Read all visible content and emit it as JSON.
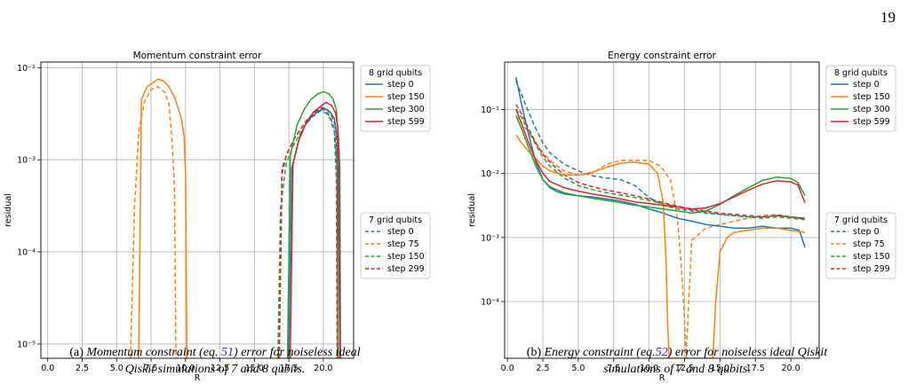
{
  "page_number": "19",
  "captions": [
    {
      "label": "(a)",
      "before": "Momentum constraint (eq.",
      "ref": "51",
      "after_line1": ") error for noiseless ideal",
      "line2": "Qiskit simulations of 7 and 8 qubits."
    },
    {
      "label": "(b)",
      "before": "Energy constraint (eq.",
      "ref": "52",
      "after_line1": ") error for noiseless ideal Qiskit",
      "line2": "simulations of 7 and 8 qubits."
    }
  ],
  "colors": {
    "step_a": "#1f77b4",
    "step_b": "#ff7f0e",
    "step_c": "#2ca02c",
    "step_d": "#d62728",
    "grid": "#b0b0b0"
  },
  "chart_data": [
    {
      "type": "line",
      "title": "Momentum constraint error",
      "xlabel": "R",
      "ylabel": "residual",
      "y_scale": "log",
      "xlim": [
        -0.5,
        22.2
      ],
      "ylim": [
        7e-06,
        0.0115
      ],
      "x_ticks": [
        0,
        2.5,
        5,
        7.5,
        10,
        12.5,
        15,
        17.5,
        20
      ],
      "x_tick_labels": [
        "0.0",
        "2.5",
        "5.0",
        "7.5",
        "10.0",
        "12.5",
        "15.0",
        "17.5",
        "20.0"
      ],
      "y_ticks": [
        1e-05,
        0.0001,
        0.001,
        0.01
      ],
      "y_tick_labels": [
        "10⁻⁵",
        "10⁻⁴",
        "10⁻³",
        "10⁻²"
      ],
      "grid": true,
      "legends": [
        {
          "title": "8 grid qubits",
          "placement": "upper-right-outside",
          "entries": [
            "step 0",
            "step 150",
            "step 300",
            "step 599"
          ],
          "styles": [
            "solid",
            "solid",
            "solid",
            "solid"
          ]
        },
        {
          "title": "7 grid qubits",
          "placement": "lower-right-outside",
          "entries": [
            "step 0",
            "step 75",
            "step 150",
            "step 299"
          ],
          "styles": [
            "dashed",
            "dashed",
            "dashed",
            "dashed"
          ]
        }
      ],
      "series": [
        {
          "legend": 0,
          "entry": 1,
          "color_key": "step_b",
          "style": "solid",
          "x": [
            6.6,
            6.8,
            7.2,
            7.6,
            8.0,
            8.4,
            8.8,
            9.2,
            9.5,
            9.7,
            9.9,
            10.0,
            10.1
          ],
          "y": [
            7e-06,
            0.0045,
            0.0062,
            0.0068,
            0.0075,
            0.0072,
            0.0062,
            0.0048,
            0.0035,
            0.0028,
            0.0018,
            0.0007,
            7e-06
          ]
        },
        {
          "legend": 1,
          "entry": 1,
          "color_key": "step_b",
          "style": "dashed",
          "x": [
            6.0,
            6.3,
            6.6,
            7.0,
            7.5,
            8.0,
            8.5,
            8.8,
            9.0,
            9.2,
            9.3
          ],
          "y": [
            7e-06,
            0.0003,
            0.002,
            0.0042,
            0.0058,
            0.0062,
            0.0054,
            0.004,
            0.0018,
            0.0005,
            7e-06
          ]
        },
        {
          "legend": 1,
          "entry": 0,
          "color_key": "step_a",
          "style": "dashed",
          "x": [
            16.8,
            17.0,
            17.3,
            17.8,
            18.3,
            18.8,
            19.3,
            19.8,
            20.2,
            20.5,
            20.8,
            21.0,
            21.05
          ],
          "y": [
            7e-06,
            0.0007,
            0.0011,
            0.0016,
            0.0021,
            0.0027,
            0.0032,
            0.0036,
            0.0034,
            0.0029,
            0.0022,
            0.0008,
            7e-06
          ]
        },
        {
          "legend": 1,
          "entry": 2,
          "color_key": "step_c",
          "style": "dashed",
          "x": [
            16.7,
            16.9,
            17.3,
            17.8,
            18.3,
            18.8,
            19.3,
            19.8,
            20.2,
            20.5,
            20.8,
            20.95,
            21.0
          ],
          "y": [
            7e-06,
            0.0003,
            0.0009,
            0.0014,
            0.0019,
            0.0025,
            0.003,
            0.0034,
            0.0032,
            0.0028,
            0.002,
            0.0006,
            7e-06
          ]
        },
        {
          "legend": 1,
          "entry": 3,
          "color_key": "step_d",
          "style": "dashed",
          "x": [
            16.8,
            17.0,
            17.4,
            17.9,
            18.4,
            18.9,
            19.4,
            19.9,
            20.3,
            20.6,
            20.9,
            21.0,
            21.05
          ],
          "y": [
            7e-06,
            0.0008,
            0.0012,
            0.0017,
            0.0022,
            0.0028,
            0.0033,
            0.0037,
            0.0035,
            0.003,
            0.0023,
            0.0009,
            7e-06
          ]
        },
        {
          "legend": 0,
          "entry": 0,
          "color_key": "step_a",
          "style": "solid",
          "x": [
            17.5,
            17.7,
            18.2,
            18.7,
            19.2,
            19.7,
            20.1,
            20.5,
            20.8,
            21.0,
            21.1,
            21.2
          ],
          "y": [
            7e-06,
            0.0008,
            0.0016,
            0.0024,
            0.003,
            0.0034,
            0.0036,
            0.0033,
            0.0028,
            0.0018,
            0.0004,
            7e-06
          ]
        },
        {
          "legend": 0,
          "entry": 2,
          "color_key": "step_c",
          "style": "solid",
          "x": [
            17.4,
            17.6,
            18.1,
            18.6,
            19.1,
            19.6,
            20.0,
            20.4,
            20.7,
            20.95,
            21.1,
            21.2,
            21.25
          ],
          "y": [
            7e-06,
            0.0011,
            0.0024,
            0.0035,
            0.0045,
            0.0052,
            0.0055,
            0.0052,
            0.0046,
            0.0035,
            0.0018,
            0.0008,
            7e-06
          ]
        },
        {
          "legend": 0,
          "entry": 3,
          "color_key": "step_d",
          "style": "solid",
          "x": [
            17.6,
            17.8,
            18.3,
            18.8,
            19.3,
            19.8,
            20.2,
            20.6,
            20.9,
            21.05,
            21.15,
            21.2
          ],
          "y": [
            7e-06,
            0.0009,
            0.0018,
            0.0026,
            0.0033,
            0.0038,
            0.0042,
            0.0039,
            0.0032,
            0.0022,
            0.0009,
            7e-06
          ]
        }
      ]
    },
    {
      "type": "line",
      "title": "Energy constraint error",
      "xlabel": "R",
      "ylabel": "residual",
      "y_scale": "log",
      "xlim": [
        -0.2,
        22.0
      ],
      "ylim": [
        1.3e-05,
        0.55
      ],
      "x_ticks": [
        0,
        2.5,
        5,
        7.5,
        10,
        12.5,
        15,
        17.5,
        20
      ],
      "x_tick_labels": [
        "0.0",
        "2.5",
        "5.0",
        "7.5",
        "10.0",
        "12.5",
        "15.0",
        "17.5",
        "20.0"
      ],
      "y_ticks": [
        0.0001,
        0.001,
        0.01,
        0.1
      ],
      "y_tick_labels": [
        "10⁻⁴",
        "10⁻³",
        "10⁻²",
        "10⁻¹"
      ],
      "grid": true,
      "legends": [
        {
          "title": "8 grid qubits",
          "placement": "upper-right-outside",
          "entries": [
            "step 0",
            "step 150",
            "step 300",
            "step 599"
          ],
          "styles": [
            "solid",
            "solid",
            "solid",
            "solid"
          ]
        },
        {
          "title": "7 grid qubits",
          "placement": "lower-right-outside",
          "entries": [
            "step 0",
            "step 75",
            "step 150",
            "step 299"
          ],
          "styles": [
            "dashed",
            "dashed",
            "dashed",
            "dashed"
          ]
        }
      ],
      "series": [
        {
          "legend": 1,
          "entry": 0,
          "color_key": "step_a",
          "style": "dashed",
          "x": [
            0.6,
            1.0,
            1.5,
            2.0,
            2.5,
            3.0,
            4.0,
            5.0,
            6.0,
            7.0,
            8.0,
            9.0,
            10.0,
            11.0,
            12.0,
            13.0,
            14.0,
            15.0,
            16.0,
            17.0,
            18.0,
            19.0,
            20.0,
            21.0
          ],
          "y": [
            0.28,
            0.17,
            0.09,
            0.05,
            0.03,
            0.021,
            0.014,
            0.011,
            0.0092,
            0.0085,
            0.008,
            0.0065,
            0.0042,
            0.0032,
            0.0028,
            0.0026,
            0.0024,
            0.0023,
            0.0022,
            0.0021,
            0.0021,
            0.0022,
            0.0021,
            0.002
          ]
        },
        {
          "legend": 1,
          "entry": 1,
          "color_key": "step_b",
          "style": "dashed",
          "x": [
            0.6,
            1.0,
            1.5,
            2.0,
            2.5,
            3.0,
            4.0,
            5.0,
            6.0,
            7.0,
            8.0,
            9.0,
            10.0,
            10.8,
            11.5,
            12.0,
            12.3,
            12.5,
            12.6,
            13.0,
            14.0,
            15.0,
            16.0,
            17.0,
            18.0,
            19.0,
            20.0,
            21.0
          ],
          "y": [
            0.08,
            0.06,
            0.045,
            0.03,
            0.021,
            0.016,
            0.011,
            0.0095,
            0.01,
            0.014,
            0.016,
            0.016,
            0.016,
            0.013,
            0.008,
            0.002,
            0.0003,
            5e-05,
            1.3e-05,
            0.0009,
            0.0014,
            0.0016,
            0.0018,
            0.002,
            0.0022,
            0.0023,
            0.0021,
            0.0019
          ]
        },
        {
          "legend": 1,
          "entry": 2,
          "color_key": "step_c",
          "style": "dashed",
          "x": [
            0.6,
            1.0,
            1.5,
            2.0,
            2.5,
            3.0,
            4.0,
            5.0,
            6.0,
            7.0,
            8.0,
            9.0,
            10.0,
            11.0,
            12.0,
            13.0,
            14.0,
            15.0,
            16.0,
            17.0,
            18.0,
            19.0,
            20.0,
            21.0
          ],
          "y": [
            0.1,
            0.075,
            0.045,
            0.028,
            0.018,
            0.013,
            0.0085,
            0.0065,
            0.0056,
            0.005,
            0.0046,
            0.0042,
            0.0038,
            0.0034,
            0.003,
            0.0027,
            0.0025,
            0.0023,
            0.0022,
            0.0021,
            0.002,
            0.0021,
            0.002,
            0.0019
          ]
        },
        {
          "legend": 1,
          "entry": 3,
          "color_key": "step_d",
          "style": "dashed",
          "x": [
            0.6,
            1.0,
            1.5,
            2.0,
            2.5,
            3.0,
            4.0,
            5.0,
            6.0,
            7.0,
            8.0,
            9.0,
            10.0,
            11.0,
            12.0,
            13.0,
            14.0,
            15.0,
            16.0,
            17.0,
            18.0,
            19.0,
            20.0,
            21.0
          ],
          "y": [
            0.12,
            0.085,
            0.05,
            0.03,
            0.02,
            0.015,
            0.0095,
            0.0072,
            0.0062,
            0.0055,
            0.005,
            0.0045,
            0.004,
            0.0035,
            0.0031,
            0.0028,
            0.0026,
            0.0024,
            0.0023,
            0.0022,
            0.0021,
            0.0022,
            0.0021,
            0.002
          ]
        },
        {
          "legend": 0,
          "entry": 0,
          "color_key": "step_a",
          "style": "solid",
          "x": [
            0.6,
            1.0,
            1.5,
            2.0,
            2.5,
            3.0,
            3.5,
            4.0,
            5.0,
            6.0,
            7.0,
            8.0,
            9.0,
            10.0,
            11.0,
            12.0,
            13.0,
            14.0,
            15.0,
            16.0,
            17.0,
            18.0,
            19.0,
            20.0,
            20.6,
            21.0
          ],
          "y": [
            0.32,
            0.12,
            0.04,
            0.015,
            0.008,
            0.006,
            0.0052,
            0.0048,
            0.0045,
            0.0043,
            0.004,
            0.0037,
            0.0033,
            0.0028,
            0.0024,
            0.002,
            0.0018,
            0.0016,
            0.0015,
            0.0014,
            0.0014,
            0.0015,
            0.0014,
            0.0014,
            0.0013,
            0.0007
          ]
        },
        {
          "legend": 0,
          "entry": 1,
          "color_key": "step_b",
          "style": "solid",
          "x": [
            0.6,
            1.0,
            1.5,
            2.0,
            2.5,
            3.0,
            4.0,
            5.0,
            6.0,
            7.0,
            8.0,
            9.0,
            10.0,
            10.6,
            11.0,
            11.2,
            11.3,
            11.4,
            14.5,
            14.7,
            15.0,
            15.5,
            16.0,
            17.0,
            18.0,
            19.0,
            20.0,
            21.0
          ],
          "y": [
            0.04,
            0.03,
            0.022,
            0.017,
            0.013,
            0.011,
            0.0095,
            0.0095,
            0.0105,
            0.0125,
            0.0145,
            0.015,
            0.014,
            0.01,
            0.0035,
            0.0004,
            5e-05,
            1.3e-05,
            1.3e-05,
            0.0001,
            0.0006,
            0.001,
            0.0012,
            0.0013,
            0.0014,
            0.0014,
            0.0013,
            0.0012
          ]
        },
        {
          "legend": 0,
          "entry": 2,
          "color_key": "step_c",
          "style": "solid",
          "x": [
            0.6,
            1.0,
            1.5,
            2.0,
            2.5,
            3.0,
            4.0,
            5.0,
            6.0,
            7.0,
            8.0,
            9.0,
            10.0,
            11.0,
            12.0,
            13.0,
            14.0,
            15.0,
            16.0,
            17.0,
            18.0,
            19.0,
            20.0,
            20.5,
            21.0
          ],
          "y": [
            0.08,
            0.05,
            0.025,
            0.013,
            0.008,
            0.0062,
            0.005,
            0.0045,
            0.0041,
            0.0038,
            0.0035,
            0.0032,
            0.003,
            0.0028,
            0.0026,
            0.0024,
            0.0026,
            0.0033,
            0.0045,
            0.006,
            0.0078,
            0.0088,
            0.0084,
            0.0072,
            0.0045
          ]
        },
        {
          "legend": 0,
          "entry": 3,
          "color_key": "step_d",
          "style": "solid",
          "x": [
            0.6,
            1.0,
            1.5,
            2.0,
            2.5,
            3.0,
            4.0,
            5.0,
            6.0,
            7.0,
            8.0,
            9.0,
            10.0,
            11.0,
            12.0,
            13.0,
            14.0,
            15.0,
            16.0,
            17.0,
            18.0,
            19.0,
            20.0,
            20.5,
            21.0
          ],
          "y": [
            0.1,
            0.06,
            0.03,
            0.016,
            0.01,
            0.0075,
            0.006,
            0.0053,
            0.0048,
            0.0044,
            0.004,
            0.0036,
            0.0034,
            0.0032,
            0.003,
            0.0028,
            0.0029,
            0.0034,
            0.0043,
            0.0055,
            0.0068,
            0.0077,
            0.0074,
            0.0066,
            0.0035
          ]
        }
      ]
    }
  ]
}
